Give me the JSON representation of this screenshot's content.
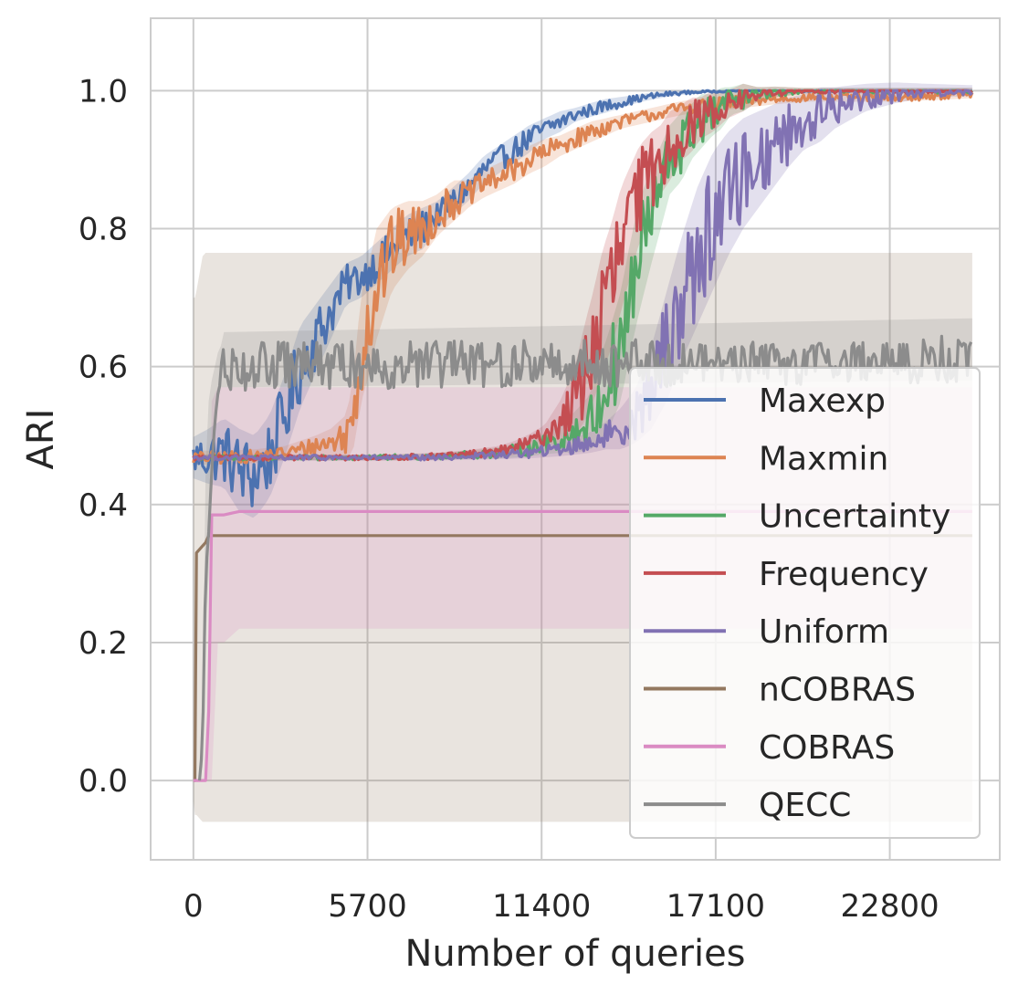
{
  "chart_data": {
    "type": "line",
    "xlabel": "Number of queries",
    "ylabel": "ARI",
    "xlim": [
      -1400,
      26400
    ],
    "ylim": [
      -0.115,
      1.105
    ],
    "x_ticks": [
      0,
      5700,
      11400,
      17100,
      22800
    ],
    "x_tick_labels": [
      "0",
      "5700",
      "11400",
      "17100",
      "22800"
    ],
    "y_ticks": [
      0.0,
      0.2,
      0.4,
      0.6,
      0.8,
      1.0
    ],
    "y_tick_labels": [
      "0.0",
      "0.2",
      "0.4",
      "0.6",
      "0.8",
      "1.0"
    ],
    "grid": true,
    "legend_position": "lower right",
    "x_end": 25500,
    "series": [
      {
        "name": "Maxexp",
        "color": "#4c72b0",
        "x": [
          0,
          500,
          1000,
          1500,
          2000,
          2500,
          3000,
          3500,
          4000,
          4500,
          5000,
          5500,
          6000,
          6500,
          7000,
          7500,
          8000,
          8500,
          9000,
          9500,
          10000,
          10500,
          11000,
          11500,
          12000,
          12500,
          13000,
          13500,
          14000,
          14500,
          15000,
          15500,
          16000,
          16500,
          17000,
          17500,
          18000,
          19000,
          20000,
          21000,
          22000,
          23000,
          24000,
          25500
        ],
        "values": [
          0.468,
          0.47,
          0.475,
          0.45,
          0.44,
          0.47,
          0.53,
          0.6,
          0.64,
          0.68,
          0.72,
          0.73,
          0.75,
          0.77,
          0.79,
          0.8,
          0.82,
          0.84,
          0.86,
          0.885,
          0.9,
          0.915,
          0.93,
          0.945,
          0.955,
          0.965,
          0.972,
          0.978,
          0.983,
          0.988,
          0.992,
          0.995,
          0.997,
          0.998,
          0.999,
          1.0,
          1.0,
          1.0,
          1.0,
          1.0,
          1.0,
          1.0,
          1.0,
          1.0
        ],
        "band": [
          0.03,
          0.04,
          0.05,
          0.06,
          0.06,
          0.06,
          0.06,
          0.06,
          0.05,
          0.04,
          0.03,
          0.03,
          0.03,
          0.03,
          0.03,
          0.03,
          0.02,
          0.02,
          0.02,
          0.02,
          0.02,
          0.02,
          0.02,
          0.015,
          0.015,
          0.01,
          0.01,
          0.01,
          0.008,
          0.006,
          0.005,
          0.004,
          0.003,
          0.002,
          0.002,
          0.002,
          0.002,
          0.002,
          0.002,
          0.002,
          0.002,
          0.002,
          0.002,
          0.002
        ]
      },
      {
        "name": "Maxmin",
        "color": "#dd8452",
        "x": [
          0,
          1000,
          2000,
          3000,
          4000,
          4500,
          5000,
          5200,
          5500,
          5700,
          6000,
          6500,
          7000,
          7500,
          8000,
          8500,
          9000,
          9500,
          10000,
          10500,
          11000,
          11500,
          12000,
          12500,
          13000,
          14000,
          15000,
          16000,
          17000,
          18000,
          19000,
          20000,
          21000,
          22000,
          23000,
          24000,
          25500
        ],
        "values": [
          0.468,
          0.468,
          0.47,
          0.475,
          0.485,
          0.49,
          0.5,
          0.52,
          0.63,
          0.66,
          0.72,
          0.77,
          0.79,
          0.8,
          0.82,
          0.84,
          0.85,
          0.865,
          0.875,
          0.885,
          0.9,
          0.91,
          0.92,
          0.93,
          0.94,
          0.955,
          0.965,
          0.975,
          0.98,
          0.985,
          0.988,
          0.99,
          0.99,
          0.99,
          0.99,
          0.992,
          0.995
        ],
        "band": [
          0.01,
          0.01,
          0.01,
          0.01,
          0.015,
          0.02,
          0.03,
          0.05,
          0.08,
          0.08,
          0.08,
          0.06,
          0.05,
          0.04,
          0.03,
          0.03,
          0.02,
          0.02,
          0.02,
          0.02,
          0.02,
          0.02,
          0.015,
          0.015,
          0.015,
          0.01,
          0.01,
          0.01,
          0.01,
          0.01,
          0.008,
          0.006,
          0.006,
          0.006,
          0.006,
          0.006,
          0.006
        ]
      },
      {
        "name": "Uncertainty",
        "color": "#55a868",
        "x": [
          0,
          2000,
          4000,
          6000,
          8000,
          9000,
          10000,
          10500,
          11000,
          11500,
          12000,
          12500,
          13000,
          13300,
          13600,
          14000,
          14300,
          14600,
          15000,
          15300,
          15600,
          16000,
          16300,
          16600,
          17000,
          17300,
          17600,
          18000,
          18500,
          19000,
          20000,
          21000,
          22000,
          23000,
          24000,
          25500
        ],
        "values": [
          0.468,
          0.468,
          0.468,
          0.468,
          0.47,
          0.472,
          0.475,
          0.478,
          0.482,
          0.488,
          0.495,
          0.505,
          0.52,
          0.55,
          0.58,
          0.63,
          0.7,
          0.76,
          0.82,
          0.86,
          0.9,
          0.92,
          0.94,
          0.955,
          0.965,
          0.975,
          0.985,
          0.99,
          0.995,
          0.998,
          1.0,
          1.0,
          1.0,
          1.0,
          1.0,
          1.0
        ],
        "band": [
          0.004,
          0.004,
          0.004,
          0.004,
          0.005,
          0.006,
          0.008,
          0.01,
          0.012,
          0.015,
          0.02,
          0.03,
          0.04,
          0.06,
          0.07,
          0.08,
          0.08,
          0.08,
          0.07,
          0.06,
          0.05,
          0.05,
          0.04,
          0.04,
          0.03,
          0.03,
          0.02,
          0.02,
          0.01,
          0.008,
          0.004,
          0.004,
          0.004,
          0.004,
          0.004,
          0.004
        ]
      },
      {
        "name": "Frequency",
        "color": "#c44e52",
        "x": [
          0,
          2000,
          4000,
          6000,
          8000,
          9000,
          10000,
          10500,
          11000,
          11500,
          12000,
          12500,
          12800,
          13100,
          13400,
          13700,
          14000,
          14300,
          14600,
          15000,
          15300,
          15600,
          16000,
          16300,
          16600,
          17000,
          17500,
          18000,
          18500,
          19000,
          20000,
          21000,
          22000,
          23000,
          24000,
          25500
        ],
        "values": [
          0.468,
          0.468,
          0.468,
          0.468,
          0.47,
          0.473,
          0.477,
          0.482,
          0.49,
          0.5,
          0.52,
          0.55,
          0.59,
          0.63,
          0.68,
          0.72,
          0.77,
          0.81,
          0.85,
          0.88,
          0.9,
          0.92,
          0.94,
          0.95,
          0.96,
          0.97,
          0.98,
          0.99,
          0.995,
          0.998,
          1.0,
          1.0,
          1.0,
          1.0,
          1.0,
          1.0
        ],
        "band": [
          0.004,
          0.004,
          0.004,
          0.004,
          0.005,
          0.006,
          0.008,
          0.01,
          0.012,
          0.015,
          0.03,
          0.05,
          0.07,
          0.08,
          0.09,
          0.09,
          0.09,
          0.08,
          0.07,
          0.06,
          0.05,
          0.05,
          0.04,
          0.04,
          0.03,
          0.03,
          0.02,
          0.02,
          0.01,
          0.008,
          0.004,
          0.004,
          0.004,
          0.004,
          0.004,
          0.004
        ]
      },
      {
        "name": "Uniform",
        "color": "#8172b3",
        "x": [
          0,
          2000,
          4000,
          6000,
          8000,
          9000,
          10000,
          11000,
          12000,
          13000,
          13500,
          14000,
          14500,
          15000,
          15500,
          16000,
          16500,
          17000,
          17500,
          18000,
          18500,
          19000,
          19500,
          20000,
          20500,
          21000,
          22000,
          23000,
          24000,
          25500
        ],
        "values": [
          0.468,
          0.468,
          0.468,
          0.468,
          0.468,
          0.47,
          0.472,
          0.475,
          0.48,
          0.49,
          0.5,
          0.51,
          0.53,
          0.57,
          0.63,
          0.7,
          0.76,
          0.81,
          0.85,
          0.88,
          0.9,
          0.92,
          0.94,
          0.955,
          0.965,
          0.975,
          0.99,
          0.997,
          1.0,
          1.0
        ],
        "band": [
          0.004,
          0.004,
          0.004,
          0.004,
          0.004,
          0.005,
          0.006,
          0.008,
          0.01,
          0.015,
          0.02,
          0.03,
          0.04,
          0.06,
          0.08,
          0.09,
          0.1,
          0.1,
          0.09,
          0.08,
          0.07,
          0.06,
          0.05,
          0.04,
          0.04,
          0.03,
          0.02,
          0.015,
          0.01,
          0.008
        ]
      },
      {
        "name": "nCOBRAS",
        "color": "#937860",
        "x": [
          0,
          50,
          100,
          300,
          400,
          500,
          1000,
          5000,
          10000,
          15000,
          20000,
          25500
        ],
        "values": [
          0.0,
          0.0,
          0.33,
          0.34,
          0.345,
          0.355,
          0.355,
          0.355,
          0.355,
          0.355,
          0.355,
          0.355
        ],
        "band_low": [
          -0.03,
          -0.05,
          -0.05,
          -0.06,
          -0.06,
          -0.06,
          -0.06,
          -0.06,
          -0.06,
          -0.06,
          -0.06,
          -0.06
        ],
        "band_high": [
          0.7,
          0.7,
          0.71,
          0.76,
          0.765,
          0.765,
          0.765,
          0.765,
          0.765,
          0.765,
          0.765,
          0.765
        ]
      },
      {
        "name": "COBRAS",
        "color": "#da8bc3",
        "x": [
          0,
          300,
          400,
          500,
          600,
          800,
          1000,
          1500,
          5000,
          10000,
          15000,
          20000,
          25500
        ],
        "values": [
          0.0,
          0.0,
          0.0,
          0.1,
          0.385,
          0.385,
          0.385,
          0.39,
          0.39,
          0.39,
          0.39,
          0.39,
          0.39
        ],
        "band_low": [
          0.0,
          0.0,
          0.0,
          0.0,
          0.0,
          0.2,
          0.2,
          0.22,
          0.22,
          0.22,
          0.22,
          0.22,
          0.22
        ],
        "band_high": [
          0.0,
          0.0,
          0.0,
          0.2,
          0.55,
          0.57,
          0.57,
          0.57,
          0.57,
          0.57,
          0.57,
          0.57,
          0.57
        ]
      },
      {
        "name": "QECC",
        "color": "#8c8c8c",
        "x": [
          200,
          300,
          400,
          500,
          600,
          700,
          800,
          900,
          1000,
          25500
        ],
        "values": [
          0.0,
          0.05,
          0.3,
          0.36,
          0.45,
          0.52,
          0.56,
          0.58,
          0.6,
          0.61
        ],
        "noise_amplitude": 0.035,
        "band_low": [
          0.0,
          0.02,
          0.2,
          0.3,
          0.45,
          0.52,
          0.55,
          0.57,
          0.57,
          0.58
        ],
        "band_high": [
          0.0,
          0.1,
          0.45,
          0.55,
          0.58,
          0.6,
          0.62,
          0.63,
          0.65,
          0.67
        ]
      }
    ]
  }
}
